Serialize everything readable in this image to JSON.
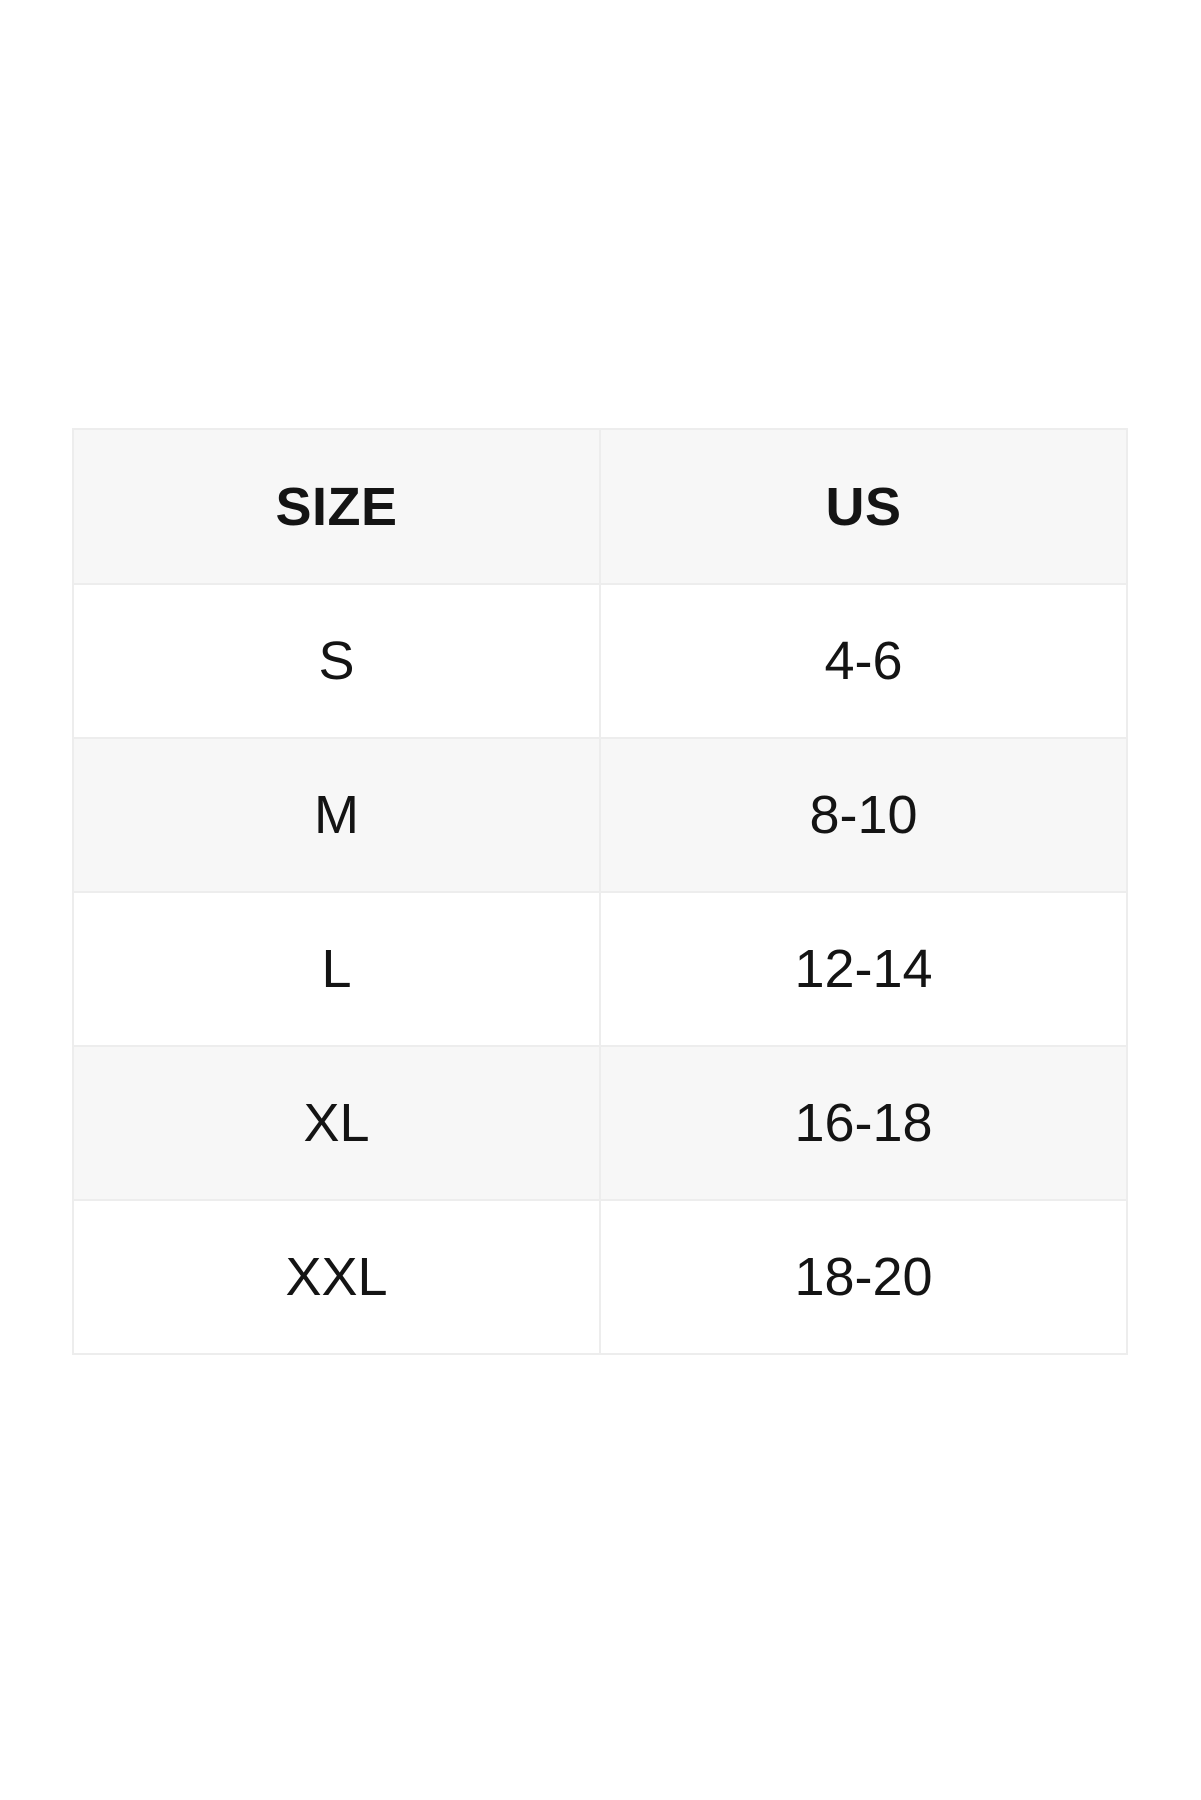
{
  "size_chart": {
    "columns": [
      {
        "key": "size",
        "label": "SIZE"
      },
      {
        "key": "us",
        "label": "US"
      }
    ],
    "rows": [
      {
        "size": "S",
        "us": "4-6"
      },
      {
        "size": "M",
        "us": "8-10"
      },
      {
        "size": "L",
        "us": "12-14"
      },
      {
        "size": "XL",
        "us": "16-18"
      },
      {
        "size": "XXL",
        "us": "18-20"
      }
    ],
    "colors": {
      "page_background": "#ffffff",
      "header_background": "#f7f7f7",
      "alt_row_background": "#f7f7f7",
      "row_background": "#ffffff",
      "border": "#ededed",
      "text": "#141414"
    }
  }
}
